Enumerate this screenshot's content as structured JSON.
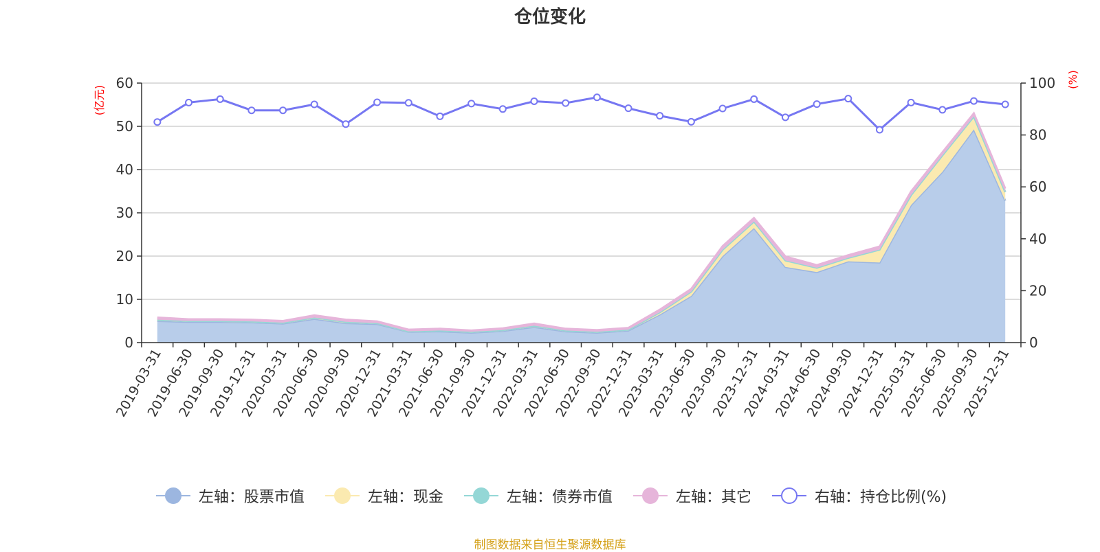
{
  "title": "仓位变化",
  "source_note": "制图数据来自恒生聚源数据库",
  "colors": {
    "stock": "#9cb6e0",
    "stock_fill": "#b8cdea",
    "cash": "#fbeab0",
    "bond": "#94d7d6",
    "other": "#e6b5da",
    "ratio": "#7677f2",
    "axis": "#333333",
    "grid": "#c8c8c8",
    "unit": "#ff0000",
    "source": "#d4a017"
  },
  "chart_data": {
    "type": "area",
    "title": "仓位变化",
    "left_axis": {
      "unit": "(亿元)",
      "ylim": [
        0,
        60
      ],
      "ticks": [
        0,
        10,
        20,
        30,
        40,
        50,
        60
      ]
    },
    "right_axis": {
      "unit": "(%)",
      "ylim": [
        0,
        100
      ],
      "ticks": [
        0,
        20,
        40,
        60,
        80,
        100
      ]
    },
    "categories": [
      "2019-03-31",
      "2019-06-30",
      "2019-09-30",
      "2019-12-31",
      "2020-03-31",
      "2020-06-30",
      "2020-09-30",
      "2020-12-31",
      "2021-03-31",
      "2021-06-30",
      "2021-09-30",
      "2021-12-31",
      "2022-03-31",
      "2022-06-30",
      "2022-09-30",
      "2022-12-31",
      "2023-03-31",
      "2023-06-30",
      "2023-09-30",
      "2023-12-31",
      "2024-03-31",
      "2024-06-30",
      "2024-09-30",
      "2024-12-31",
      "2025-03-31",
      "2025-06-30",
      "2025-09-30",
      "2025-12-31"
    ],
    "series": [
      {
        "name": "左轴：股票市值",
        "axis": "left",
        "kind": "stacked-area",
        "values": [
          5.0,
          4.8,
          4.8,
          4.7,
          4.4,
          5.5,
          4.5,
          4.3,
          2.5,
          2.6,
          2.3,
          2.7,
          3.6,
          2.6,
          2.3,
          2.8,
          6.5,
          10.8,
          20.0,
          26.5,
          17.5,
          16.3,
          18.8,
          18.5,
          31.8,
          39.5,
          49.3,
          32.8
        ]
      },
      {
        "name": "左轴：现金",
        "axis": "left",
        "kind": "stacked-area",
        "values": [
          0.3,
          0.2,
          0.2,
          0.2,
          0.2,
          0.3,
          0.3,
          0.2,
          0.1,
          0.2,
          0.2,
          0.2,
          0.3,
          0.2,
          0.2,
          0.2,
          0.5,
          1.0,
          1.5,
          1.5,
          1.5,
          1.0,
          0.8,
          3.0,
          2.3,
          3.8,
          3.0,
          2.0
        ]
      },
      {
        "name": "左轴：债券市值",
        "axis": "left",
        "kind": "stacked-area",
        "values": [
          0,
          0,
          0,
          0,
          0,
          0,
          0,
          0,
          0,
          0,
          0,
          0,
          0,
          0,
          0,
          0,
          0,
          0,
          0,
          0,
          0,
          0,
          0,
          0,
          0,
          0,
          0,
          0
        ]
      },
      {
        "name": "左轴：其它",
        "axis": "left",
        "kind": "stacked-area",
        "values": [
          0.5,
          0.4,
          0.4,
          0.4,
          0.4,
          0.5,
          0.5,
          0.4,
          0.4,
          0.4,
          0.3,
          0.4,
          0.5,
          0.4,
          0.4,
          0.4,
          0.6,
          0.6,
          0.8,
          0.8,
          0.9,
          0.6,
          0.6,
          0.7,
          0.8,
          0.7,
          0.7,
          0.8
        ]
      },
      {
        "name": "右轴：持仓比例(%)",
        "axis": "right",
        "kind": "line",
        "values": [
          85.0,
          92.5,
          93.8,
          89.5,
          89.5,
          91.8,
          84.2,
          92.6,
          92.4,
          87.2,
          92.1,
          90.0,
          93.0,
          92.3,
          94.5,
          90.3,
          87.4,
          85.1,
          90.2,
          93.8,
          86.8,
          91.9,
          94.0,
          82.0,
          92.5,
          89.7,
          93.1,
          91.8
        ]
      }
    ]
  }
}
